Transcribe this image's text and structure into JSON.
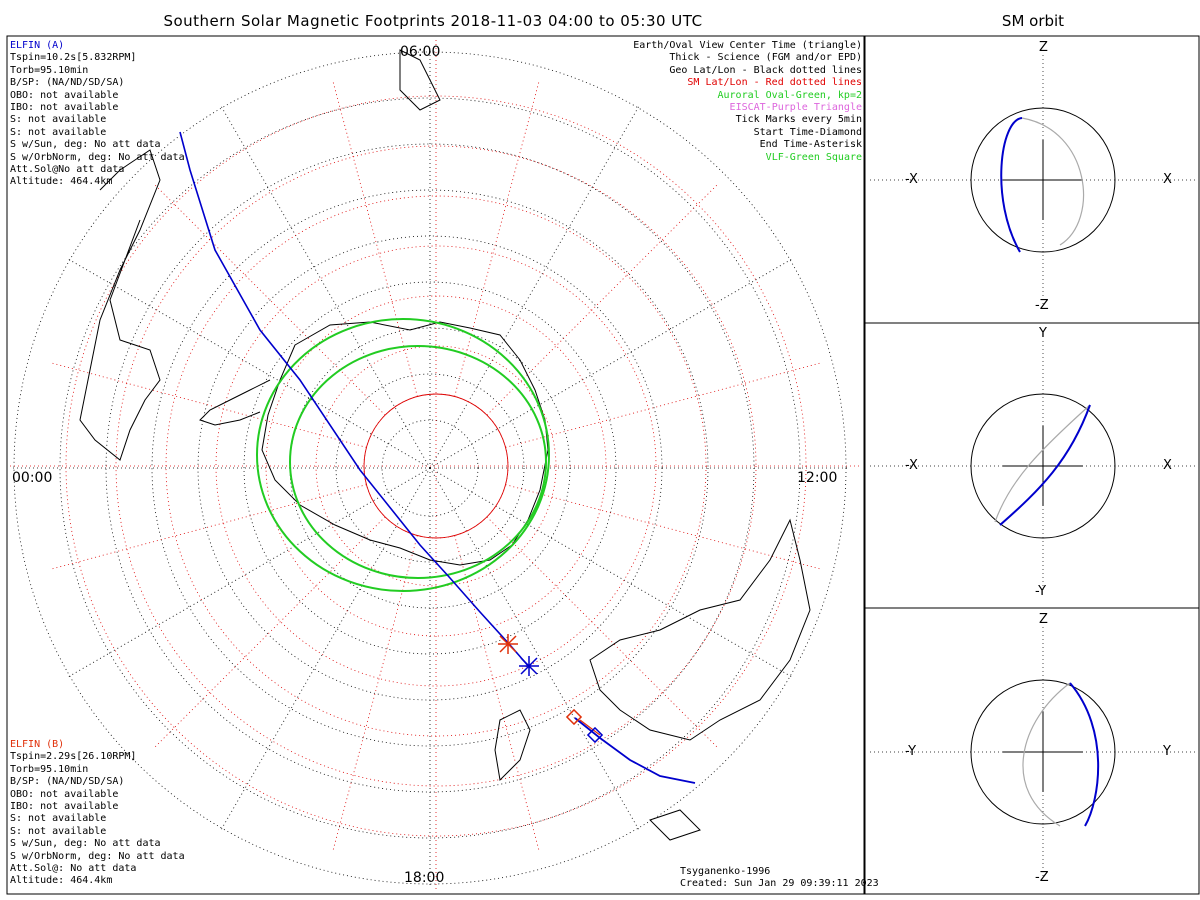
{
  "title": "Southern Solar Magnetic Footprints 2018-11-03 04:00 to 05:30 UTC",
  "orbit_title": "SM orbit",
  "hours": {
    "top": "06:00",
    "left": "00:00",
    "right": "12:00",
    "bottom": "18:00"
  },
  "elfin_a": {
    "name": "ELFIN (A)",
    "color": "#0000cc",
    "lines": [
      "Tspin=10.2s[5.832RPM]",
      "Torb=95.10min",
      "B/SP: (NA/ND/SD/SA)",
      "OBO: not available",
      "IBO: not available",
      "S: not available",
      "S: not available",
      "S w/Sun, deg: No att data",
      "S w/OrbNorm, deg: No att data",
      "Att.Sol@No att data",
      "Altitude: 464.4km"
    ]
  },
  "elfin_b": {
    "name": "ELFIN (B)",
    "color": "#e0300a",
    "lines": [
      "Tspin=2.29s[26.10RPM]",
      "Torb=95.10min",
      "B/SP: (NA/ND/SD/SA)",
      "OBO: not available",
      "IBO: not available",
      "S: not available",
      "S: not available",
      "S w/Sun, deg: No att data",
      "S w/OrbNorm, deg: No att data",
      "Att.Sol@: No att data",
      "Altitude: 464.4km"
    ]
  },
  "legend": [
    {
      "text": "Earth/Oval View Center Time (triangle)",
      "color": "#000000"
    },
    {
      "text": "Thick - Science (FGM and/or EPD)",
      "color": "#000000"
    },
    {
      "text": "Geo Lat/Lon - Black dotted lines",
      "color": "#000000"
    },
    {
      "text": "SM Lat/Lon - Red dotted lines",
      "color": "#e00000"
    },
    {
      "text": "Auroral Oval-Green, kp=2",
      "color": "#22cc22"
    },
    {
      "text": "EISCAT-Purple Triangle",
      "color": "#dd66dd"
    },
    {
      "text": "Tick Marks every 5min",
      "color": "#000000"
    },
    {
      "text": "Start Time-Diamond",
      "color": "#000000"
    },
    {
      "text": "End Time-Asterisk",
      "color": "#000000"
    },
    {
      "text": "VLF-Green Square",
      "color": "#22cc22"
    }
  ],
  "footer": {
    "model": "Tsyganenko-1996",
    "created": "Created: Sun Jan 29 09:39:11 2023"
  },
  "panels": [
    {
      "top": "Z",
      "bottom": "-Z",
      "left": "-X",
      "right": "X"
    },
    {
      "top": "Y",
      "bottom": "-Y",
      "left": "-X",
      "right": "X"
    },
    {
      "top": "Z",
      "bottom": "-Z",
      "left": "-Y",
      "right": "Y"
    }
  ],
  "colors": {
    "geo_grid": "#000000",
    "sm_grid": "#dd0000",
    "oval": "#22cc22",
    "track_a": "#0000cc",
    "track_b": "#e0300a",
    "orbit_other": "#aaaaaa"
  }
}
